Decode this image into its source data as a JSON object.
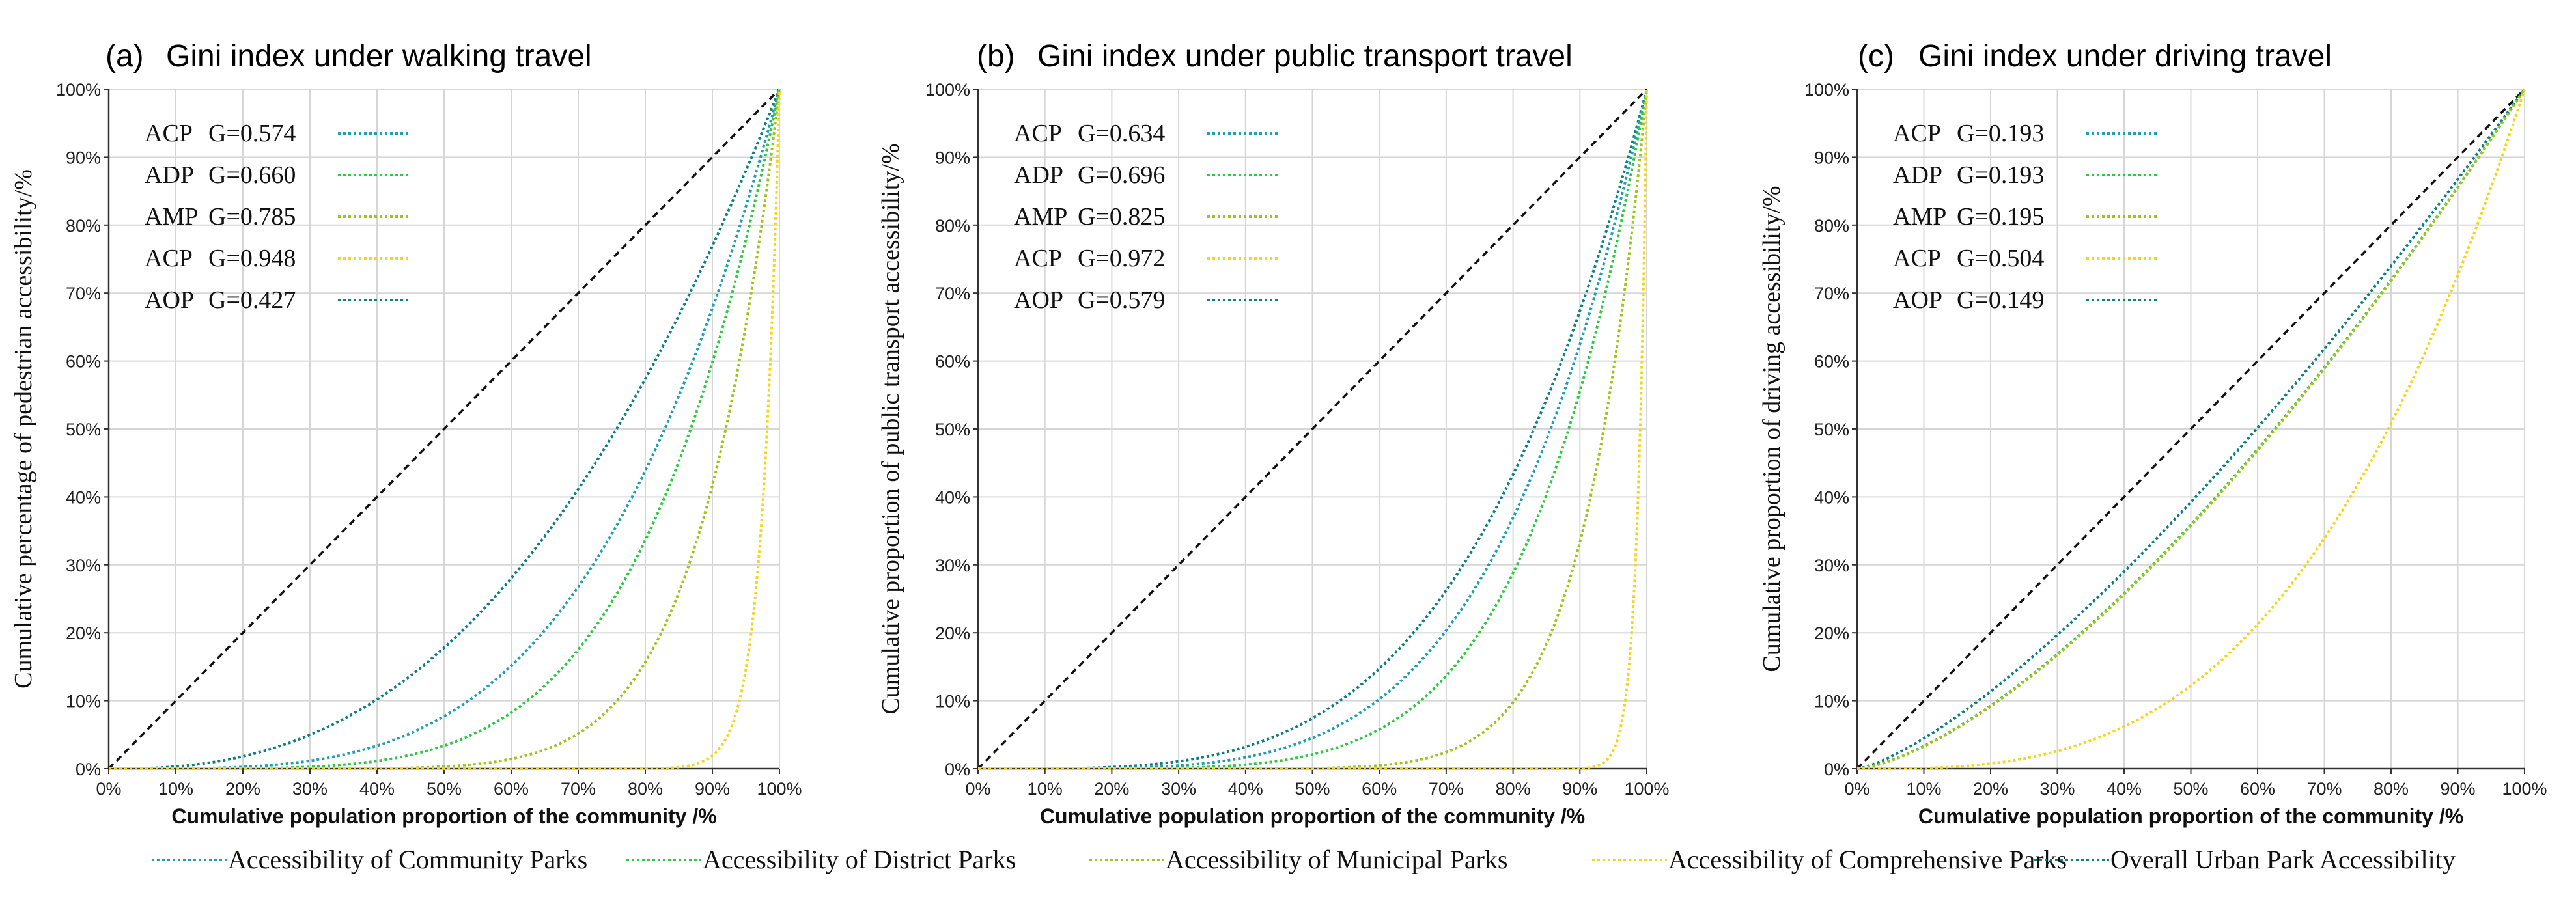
{
  "series_colors": {
    "community": "#1f9fb0",
    "district": "#2ec845",
    "municipal": "#9ec41a",
    "comprehensive": "#f5d51a",
    "overall": "#0e7f7f"
  },
  "bottom_legend": [
    {
      "key": "community",
      "label": "Accessibility of Community Parks"
    },
    {
      "key": "district",
      "label": "Accessibility of District  Parks"
    },
    {
      "key": "municipal",
      "label": "Accessibility of Municipal  Parks"
    },
    {
      "key": "comprehensive",
      "label": "Accessibility of Comprehensive Parks"
    },
    {
      "key": "overall",
      "label": "Overall Urban Park Accessibility"
    }
  ],
  "chart_data": [
    {
      "type": "line",
      "panel_letter": "(a)",
      "title": "Gini index under walking travel",
      "xlabel": "Cumulative population proportion of the community /%",
      "ylabel": "Cumulative percentage of pedestrian accessibility/%",
      "xlim": [
        0,
        100
      ],
      "ylim": [
        0,
        100
      ],
      "grid": true,
      "x_ticks": [
        "0%",
        "10%",
        "20%",
        "30%",
        "40%",
        "50%",
        "60%",
        "70%",
        "80%",
        "90%",
        "100%"
      ],
      "y_ticks": [
        "0%",
        "10%",
        "20%",
        "30%",
        "40%",
        "50%",
        "60%",
        "70%",
        "80%",
        "90%",
        "100%"
      ],
      "reference_line": {
        "name": "equality",
        "x": [
          0,
          100
        ],
        "y": [
          0,
          100
        ]
      },
      "series": [
        {
          "key": "community",
          "abbr": "ACP",
          "gini_label": "G=0.574",
          "gini": 0.574
        },
        {
          "key": "district",
          "abbr": "ADP",
          "gini_label": "G=0.660",
          "gini": 0.66
        },
        {
          "key": "municipal",
          "abbr": "AMP",
          "gini_label": "G=0.785",
          "gini": 0.785
        },
        {
          "key": "comprehensive",
          "abbr": "ACP",
          "gini_label": "G=0.948",
          "gini": 0.948
        },
        {
          "key": "overall",
          "abbr": "AOP",
          "gini_label": "G=0.427",
          "gini": 0.427
        }
      ]
    },
    {
      "type": "line",
      "panel_letter": "(b)",
      "title": "Gini index under public transport travel",
      "xlabel": "Cumulative population proportion of the community /%",
      "ylabel": "Cumulative proportion of public transport accessibility/%",
      "xlim": [
        0,
        100
      ],
      "ylim": [
        0,
        100
      ],
      "grid": true,
      "x_ticks": [
        "0%",
        "10%",
        "20%",
        "30%",
        "40%",
        "50%",
        "60%",
        "70%",
        "80%",
        "90%",
        "100%"
      ],
      "y_ticks": [
        "0%",
        "10%",
        "20%",
        "30%",
        "40%",
        "50%",
        "60%",
        "70%",
        "80%",
        "90%",
        "100%"
      ],
      "reference_line": {
        "name": "equality",
        "x": [
          0,
          100
        ],
        "y": [
          0,
          100
        ]
      },
      "series": [
        {
          "key": "community",
          "abbr": "ACP",
          "gini_label": "G=0.634",
          "gini": 0.634
        },
        {
          "key": "district",
          "abbr": "ADP",
          "gini_label": "G=0.696",
          "gini": 0.696
        },
        {
          "key": "municipal",
          "abbr": "AMP",
          "gini_label": "G=0.825",
          "gini": 0.825
        },
        {
          "key": "comprehensive",
          "abbr": "ACP",
          "gini_label": "G=0.972",
          "gini": 0.972
        },
        {
          "key": "overall",
          "abbr": "AOP",
          "gini_label": "G=0.579",
          "gini": 0.579
        }
      ]
    },
    {
      "type": "line",
      "panel_letter": "(c)",
      "title": "Gini index under driving travel",
      "xlabel": "Cumulative population proportion of the community /%",
      "ylabel": "Cumulative proportion of driving accessibility/%",
      "xlim": [
        0,
        100
      ],
      "ylim": [
        0,
        100
      ],
      "grid": true,
      "x_ticks": [
        "0%",
        "10%",
        "20%",
        "30%",
        "40%",
        "50%",
        "60%",
        "70%",
        "80%",
        "90%",
        "100%"
      ],
      "y_ticks": [
        "0%",
        "10%",
        "20%",
        "30%",
        "40%",
        "50%",
        "60%",
        "70%",
        "80%",
        "90%",
        "100%"
      ],
      "reference_line": {
        "name": "equality",
        "x": [
          0,
          100
        ],
        "y": [
          0,
          100
        ]
      },
      "series": [
        {
          "key": "community",
          "abbr": "ACP",
          "gini_label": "G=0.193",
          "gini": 0.193
        },
        {
          "key": "district",
          "abbr": "ADP",
          "gini_label": "G=0.193",
          "gini": 0.193
        },
        {
          "key": "municipal",
          "abbr": "AMP",
          "gini_label": "G=0.195",
          "gini": 0.195
        },
        {
          "key": "comprehensive",
          "abbr": "ACP",
          "gini_label": "G=0.504",
          "gini": 0.504
        },
        {
          "key": "overall",
          "abbr": "AOP",
          "gini_label": "G=0.149",
          "gini": 0.149
        }
      ]
    }
  ]
}
